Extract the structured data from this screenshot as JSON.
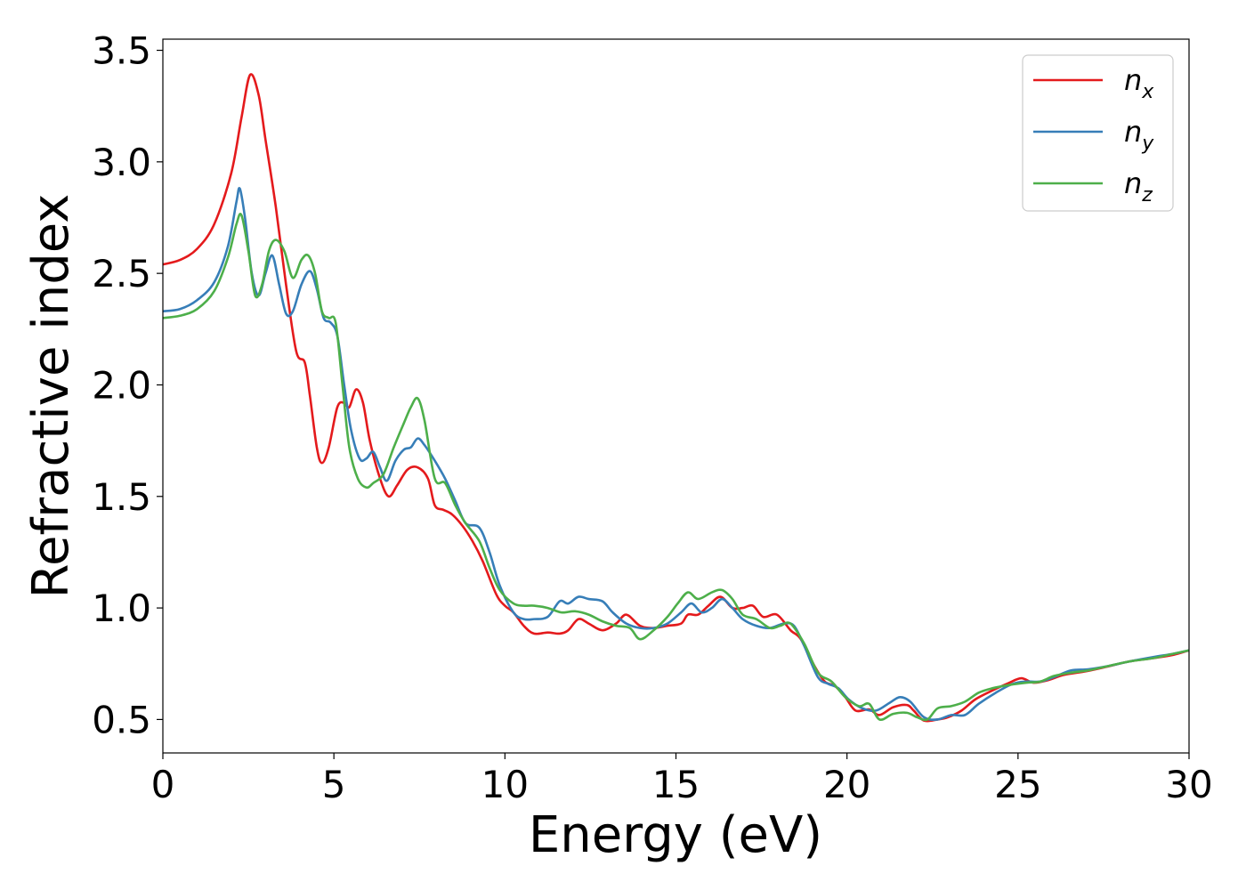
{
  "chart_data": {
    "type": "line",
    "xlabel": "Energy (eV)",
    "ylabel": "Refractive index",
    "xlim": [
      0,
      30
    ],
    "ylim": [
      0.35,
      3.55
    ],
    "xticks": [
      "0",
      "5",
      "10",
      "15",
      "20",
      "25",
      "30"
    ],
    "yticks": [
      "0.5",
      "1.0",
      "1.5",
      "2.0",
      "2.5",
      "3.0",
      "3.5"
    ],
    "grid": false,
    "legend_position": "top-right",
    "series": [
      {
        "name": "n",
        "subscript": "x",
        "color": "#e41a1c",
        "points": [
          [
            0,
            2.54
          ],
          [
            0.5,
            2.56
          ],
          [
            1.0,
            2.61
          ],
          [
            1.5,
            2.72
          ],
          [
            2.0,
            2.95
          ],
          [
            2.3,
            3.2
          ],
          [
            2.55,
            3.39
          ],
          [
            2.8,
            3.3
          ],
          [
            3.0,
            3.1
          ],
          [
            3.3,
            2.8
          ],
          [
            3.6,
            2.45
          ],
          [
            3.9,
            2.15
          ],
          [
            4.15,
            2.1
          ],
          [
            4.3,
            1.95
          ],
          [
            4.5,
            1.72
          ],
          [
            4.65,
            1.65
          ],
          [
            4.85,
            1.72
          ],
          [
            5.1,
            1.9
          ],
          [
            5.3,
            1.92
          ],
          [
            5.45,
            1.9
          ],
          [
            5.65,
            1.98
          ],
          [
            5.85,
            1.92
          ],
          [
            6.05,
            1.75
          ],
          [
            6.35,
            1.58
          ],
          [
            6.6,
            1.5
          ],
          [
            6.85,
            1.55
          ],
          [
            7.15,
            1.62
          ],
          [
            7.45,
            1.63
          ],
          [
            7.75,
            1.58
          ],
          [
            7.95,
            1.46
          ],
          [
            8.2,
            1.44
          ],
          [
            8.45,
            1.42
          ],
          [
            8.75,
            1.37
          ],
          [
            9.05,
            1.3
          ],
          [
            9.35,
            1.21
          ],
          [
            9.75,
            1.06
          ],
          [
            10.0,
            1.01
          ],
          [
            10.25,
            0.98
          ],
          [
            10.55,
            0.92
          ],
          [
            10.85,
            0.885
          ],
          [
            11.25,
            0.89
          ],
          [
            11.6,
            0.885
          ],
          [
            11.85,
            0.9
          ],
          [
            12.15,
            0.95
          ],
          [
            12.45,
            0.93
          ],
          [
            12.85,
            0.9
          ],
          [
            13.25,
            0.93
          ],
          [
            13.55,
            0.97
          ],
          [
            13.95,
            0.92
          ],
          [
            14.35,
            0.91
          ],
          [
            14.75,
            0.92
          ],
          [
            15.15,
            0.93
          ],
          [
            15.35,
            0.97
          ],
          [
            15.65,
            0.97
          ],
          [
            15.95,
            1.01
          ],
          [
            16.3,
            1.05
          ],
          [
            16.65,
            1.0
          ],
          [
            16.95,
            1.0
          ],
          [
            17.25,
            1.01
          ],
          [
            17.55,
            0.96
          ],
          [
            17.95,
            0.97
          ],
          [
            18.35,
            0.9
          ],
          [
            18.65,
            0.86
          ],
          [
            19.05,
            0.74
          ],
          [
            19.35,
            0.67
          ],
          [
            19.65,
            0.65
          ],
          [
            19.95,
            0.6
          ],
          [
            20.25,
            0.54
          ],
          [
            20.65,
            0.545
          ],
          [
            20.95,
            0.52
          ],
          [
            21.35,
            0.555
          ],
          [
            21.75,
            0.565
          ],
          [
            21.95,
            0.54
          ],
          [
            22.25,
            0.495
          ],
          [
            22.65,
            0.5
          ],
          [
            22.95,
            0.51
          ],
          [
            23.35,
            0.54
          ],
          [
            23.75,
            0.59
          ],
          [
            24.25,
            0.63
          ],
          [
            24.75,
            0.665
          ],
          [
            25.1,
            0.685
          ],
          [
            25.45,
            0.665
          ],
          [
            25.85,
            0.675
          ],
          [
            26.35,
            0.7
          ],
          [
            26.95,
            0.715
          ],
          [
            27.55,
            0.735
          ],
          [
            28.25,
            0.76
          ],
          [
            28.95,
            0.775
          ],
          [
            29.55,
            0.79
          ],
          [
            30.0,
            0.81
          ]
        ]
      },
      {
        "name": "n",
        "subscript": "y",
        "color": "#377eb8",
        "points": [
          [
            0,
            2.33
          ],
          [
            0.5,
            2.34
          ],
          [
            1.0,
            2.38
          ],
          [
            1.5,
            2.46
          ],
          [
            1.9,
            2.62
          ],
          [
            2.15,
            2.82
          ],
          [
            2.25,
            2.88
          ],
          [
            2.4,
            2.75
          ],
          [
            2.6,
            2.5
          ],
          [
            2.8,
            2.4
          ],
          [
            3.0,
            2.5
          ],
          [
            3.2,
            2.58
          ],
          [
            3.4,
            2.45
          ],
          [
            3.6,
            2.32
          ],
          [
            3.8,
            2.33
          ],
          [
            4.05,
            2.45
          ],
          [
            4.3,
            2.51
          ],
          [
            4.5,
            2.43
          ],
          [
            4.7,
            2.3
          ],
          [
            4.9,
            2.28
          ],
          [
            5.1,
            2.22
          ],
          [
            5.3,
            2.0
          ],
          [
            5.5,
            1.8
          ],
          [
            5.75,
            1.67
          ],
          [
            5.95,
            1.67
          ],
          [
            6.15,
            1.7
          ],
          [
            6.35,
            1.63
          ],
          [
            6.55,
            1.57
          ],
          [
            6.8,
            1.66
          ],
          [
            7.05,
            1.71
          ],
          [
            7.25,
            1.72
          ],
          [
            7.45,
            1.76
          ],
          [
            7.65,
            1.73
          ],
          [
            7.95,
            1.66
          ],
          [
            8.25,
            1.58
          ],
          [
            8.55,
            1.48
          ],
          [
            8.85,
            1.38
          ],
          [
            9.25,
            1.36
          ],
          [
            9.55,
            1.25
          ],
          [
            9.85,
            1.1
          ],
          [
            10.25,
            0.98
          ],
          [
            10.55,
            0.95
          ],
          [
            10.85,
            0.95
          ],
          [
            11.25,
            0.96
          ],
          [
            11.6,
            1.03
          ],
          [
            11.85,
            1.02
          ],
          [
            12.15,
            1.05
          ],
          [
            12.45,
            1.04
          ],
          [
            12.85,
            1.03
          ],
          [
            13.15,
            0.98
          ],
          [
            13.55,
            0.93
          ],
          [
            13.95,
            0.91
          ],
          [
            14.35,
            0.91
          ],
          [
            14.75,
            0.93
          ],
          [
            15.15,
            0.98
          ],
          [
            15.45,
            1.02
          ],
          [
            15.75,
            0.98
          ],
          [
            16.05,
            1.0
          ],
          [
            16.35,
            1.04
          ],
          [
            16.65,
            1.0
          ],
          [
            16.95,
            0.95
          ],
          [
            17.35,
            0.92
          ],
          [
            17.75,
            0.91
          ],
          [
            18.15,
            0.93
          ],
          [
            18.45,
            0.92
          ],
          [
            18.75,
            0.83
          ],
          [
            19.15,
            0.69
          ],
          [
            19.45,
            0.66
          ],
          [
            19.75,
            0.64
          ],
          [
            20.05,
            0.59
          ],
          [
            20.45,
            0.55
          ],
          [
            20.85,
            0.54
          ],
          [
            21.25,
            0.575
          ],
          [
            21.55,
            0.6
          ],
          [
            21.85,
            0.58
          ],
          [
            22.25,
            0.51
          ],
          [
            22.65,
            0.5
          ],
          [
            23.05,
            0.52
          ],
          [
            23.45,
            0.52
          ],
          [
            23.85,
            0.57
          ],
          [
            24.35,
            0.62
          ],
          [
            24.85,
            0.66
          ],
          [
            25.25,
            0.67
          ],
          [
            25.65,
            0.67
          ],
          [
            26.05,
            0.69
          ],
          [
            26.55,
            0.72
          ],
          [
            27.05,
            0.725
          ],
          [
            27.65,
            0.74
          ],
          [
            28.25,
            0.76
          ],
          [
            28.95,
            0.78
          ],
          [
            29.55,
            0.795
          ],
          [
            30.0,
            0.81
          ]
        ]
      },
      {
        "name": "n",
        "subscript": "z",
        "color": "#4daf4a",
        "points": [
          [
            0,
            2.3
          ],
          [
            0.5,
            2.31
          ],
          [
            1.0,
            2.34
          ],
          [
            1.5,
            2.42
          ],
          [
            1.9,
            2.57
          ],
          [
            2.15,
            2.72
          ],
          [
            2.3,
            2.76
          ],
          [
            2.5,
            2.6
          ],
          [
            2.7,
            2.4
          ],
          [
            2.9,
            2.45
          ],
          [
            3.1,
            2.6
          ],
          [
            3.3,
            2.65
          ],
          [
            3.55,
            2.6
          ],
          [
            3.8,
            2.48
          ],
          [
            4.05,
            2.56
          ],
          [
            4.25,
            2.58
          ],
          [
            4.45,
            2.5
          ],
          [
            4.65,
            2.33
          ],
          [
            4.85,
            2.3
          ],
          [
            5.05,
            2.28
          ],
          [
            5.25,
            2.0
          ],
          [
            5.45,
            1.72
          ],
          [
            5.7,
            1.58
          ],
          [
            5.95,
            1.54
          ],
          [
            6.15,
            1.56
          ],
          [
            6.45,
            1.6
          ],
          [
            6.75,
            1.72
          ],
          [
            7.05,
            1.83
          ],
          [
            7.25,
            1.9
          ],
          [
            7.45,
            1.94
          ],
          [
            7.65,
            1.84
          ],
          [
            7.95,
            1.58
          ],
          [
            8.25,
            1.56
          ],
          [
            8.55,
            1.46
          ],
          [
            8.85,
            1.38
          ],
          [
            9.25,
            1.3
          ],
          [
            9.55,
            1.18
          ],
          [
            9.85,
            1.08
          ],
          [
            10.25,
            1.02
          ],
          [
            10.55,
            1.01
          ],
          [
            10.85,
            1.01
          ],
          [
            11.25,
            1.0
          ],
          [
            11.65,
            0.98
          ],
          [
            12.05,
            0.985
          ],
          [
            12.45,
            0.97
          ],
          [
            12.85,
            0.94
          ],
          [
            13.25,
            0.92
          ],
          [
            13.65,
            0.91
          ],
          [
            13.95,
            0.86
          ],
          [
            14.35,
            0.9
          ],
          [
            14.75,
            0.96
          ],
          [
            15.05,
            1.02
          ],
          [
            15.35,
            1.07
          ],
          [
            15.65,
            1.04
          ],
          [
            16.05,
            1.07
          ],
          [
            16.35,
            1.08
          ],
          [
            16.65,
            1.04
          ],
          [
            16.95,
            0.97
          ],
          [
            17.35,
            0.95
          ],
          [
            17.75,
            0.91
          ],
          [
            18.05,
            0.92
          ],
          [
            18.35,
            0.93
          ],
          [
            18.75,
            0.84
          ],
          [
            19.15,
            0.71
          ],
          [
            19.55,
            0.67
          ],
          [
            19.95,
            0.6
          ],
          [
            20.35,
            0.56
          ],
          [
            20.65,
            0.57
          ],
          [
            20.95,
            0.5
          ],
          [
            21.35,
            0.525
          ],
          [
            21.75,
            0.53
          ],
          [
            22.05,
            0.51
          ],
          [
            22.35,
            0.5
          ],
          [
            22.65,
            0.55
          ],
          [
            23.05,
            0.56
          ],
          [
            23.45,
            0.58
          ],
          [
            23.85,
            0.62
          ],
          [
            24.25,
            0.64
          ],
          [
            24.75,
            0.655
          ],
          [
            25.25,
            0.665
          ],
          [
            25.65,
            0.67
          ],
          [
            26.05,
            0.695
          ],
          [
            26.55,
            0.71
          ],
          [
            27.05,
            0.72
          ],
          [
            27.65,
            0.74
          ],
          [
            28.25,
            0.76
          ],
          [
            28.95,
            0.775
          ],
          [
            29.55,
            0.795
          ],
          [
            30.0,
            0.81
          ]
        ]
      }
    ]
  }
}
